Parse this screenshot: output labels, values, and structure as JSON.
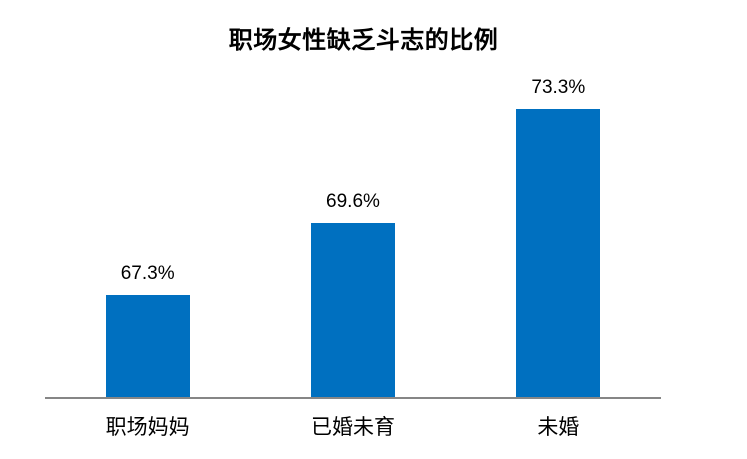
{
  "chart_data": {
    "type": "bar",
    "title": "职场女性缺乏斗志的比例",
    "categories": [
      "职场妈妈",
      "已婚未育",
      "未婚"
    ],
    "values": [
      67.3,
      69.6,
      73.3
    ],
    "value_labels": [
      "67.3%",
      "69.6%",
      "73.3%"
    ],
    "xlabel": "",
    "ylabel": "",
    "ylim": [
      64,
      76.8
    ],
    "grid": false,
    "legend": "none",
    "y_axis_visible": false,
    "bar_color": "#0070C0",
    "axis_line_color": "#868686",
    "text_color": "#000000",
    "background": "#FFFFFF"
  }
}
